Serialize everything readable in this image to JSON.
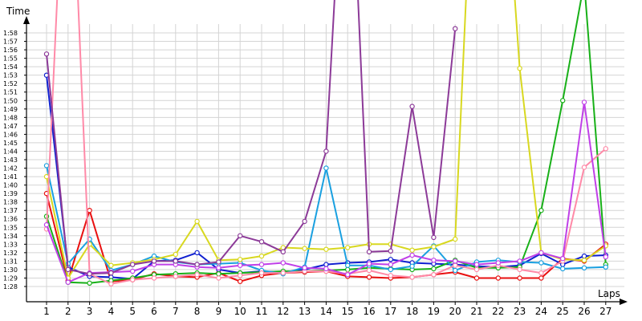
{
  "chart_data": {
    "type": "line",
    "title": "",
    "xlabel": "Laps",
    "ylabel": "Time",
    "x": [
      1,
      2,
      3,
      4,
      5,
      6,
      7,
      8,
      9,
      10,
      11,
      12,
      13,
      14,
      15,
      16,
      17,
      18,
      19,
      20,
      21,
      22,
      23,
      24,
      25,
      26,
      27
    ],
    "x_tick_labels": [
      "1",
      "2",
      "3",
      "4",
      "5",
      "6",
      "7",
      "8",
      "9",
      "10",
      "11",
      "12",
      "13",
      "14",
      "15",
      "16",
      "17",
      "18",
      "19",
      "20",
      "21",
      "22",
      "23",
      "24",
      "25",
      "26",
      "27"
    ],
    "y_unit": "seconds",
    "ylim": [
      87,
      119
    ],
    "y_tick_values": [
      88,
      89,
      90,
      91,
      92,
      93,
      94,
      95,
      96,
      97,
      98,
      99,
      100,
      101,
      102,
      103,
      104,
      105,
      106,
      107,
      108,
      109,
      110,
      111,
      112,
      113,
      114,
      115,
      116,
      117,
      118
    ],
    "y_tick_labels": [
      "1:28",
      "1:29",
      "1:30",
      "1:31",
      "1:32",
      "1:33",
      "1:34",
      "1:35",
      "1:36",
      "1:37",
      "1:38",
      "1:39",
      "1:40",
      "1:41",
      "1:42",
      "1:43",
      "1:44",
      "1:45",
      "1:46",
      "1:47",
      "1:48",
      "1:49",
      "1:50",
      "1:51",
      "1:52",
      "1:53",
      "1:54",
      "1:55",
      "1:56",
      "1:57",
      "1:58"
    ],
    "grid": true,
    "legend": "none",
    "series": [
      {
        "color": "#e81010",
        "values": [
          99.0,
          88.7,
          97.0,
          88.6,
          88.8,
          89.5,
          89.2,
          89.1,
          89.6,
          88.6,
          89.3,
          89.6,
          89.7,
          89.8,
          89.2,
          89.1,
          89.0,
          89.1,
          89.4,
          89.7,
          89.0,
          89.0,
          89.0,
          89.0,
          91.3,
          91.0,
          93.0
        ]
      },
      {
        "color": "#1020d0",
        "values": [
          113.0,
          90.3,
          89.2,
          89.1,
          88.9,
          91.0,
          91.1,
          92.0,
          90.0,
          89.6,
          89.8,
          89.7,
          90.0,
          90.6,
          90.8,
          90.9,
          91.2,
          90.8,
          90.7,
          90.6,
          90.4,
          90.3,
          90.5,
          91.9,
          90.6,
          91.6,
          91.7
        ]
      },
      {
        "color": "#18b018",
        "values": [
          96.3,
          88.5,
          88.4,
          88.7,
          89.0,
          89.4,
          89.5,
          89.6,
          89.5,
          89.6,
          89.7,
          89.8,
          89.8,
          89.9,
          90.0,
          90.2,
          90.1,
          90.0,
          90.1,
          91.1,
          90.2,
          90.2,
          90.3,
          97.0,
          110.0,
          124.0,
          90.6
        ]
      },
      {
        "color": "#1aa0e0",
        "values": [
          102.3,
          90.7,
          93.6,
          89.9,
          90.6,
          91.6,
          90.9,
          90.6,
          90.7,
          90.8,
          89.9,
          89.5,
          90.3,
          102.0,
          90.5,
          90.5,
          90.0,
          90.4,
          92.8,
          89.9,
          90.9,
          91.1,
          90.9,
          90.8,
          90.1,
          90.2,
          90.3
        ]
      },
      {
        "color": "#d8d820",
        "values": [
          101.0,
          89.0,
          93.0,
          90.5,
          90.8,
          91.2,
          91.8,
          95.7,
          91.1,
          91.2,
          91.6,
          92.6,
          92.5,
          92.4,
          92.6,
          93.0,
          93.0,
          92.3,
          92.7,
          93.6,
          150.0,
          150.0,
          113.8,
          92.0,
          91.2,
          91.1,
          92.8
        ]
      },
      {
        "color": "#ff8aa8",
        "values": [
          94.8,
          150.0,
          89.5,
          88.3,
          88.8,
          89.0,
          89.2,
          89.4,
          89.0,
          89.3,
          89.6,
          89.6,
          89.8,
          89.8,
          89.5,
          89.9,
          89.3,
          89.1,
          89.4,
          90.5,
          90.0,
          90.5,
          90.0,
          89.6,
          91.0,
          102.1,
          104.3
        ]
      },
      {
        "color": "#c040e8",
        "values": [
          95.3,
          88.5,
          89.6,
          89.7,
          89.8,
          90.6,
          90.6,
          90.3,
          90.2,
          90.5,
          90.6,
          90.8,
          90.2,
          90.1,
          89.4,
          90.7,
          90.6,
          91.7,
          91.1,
          91.0,
          90.6,
          90.8,
          91.0,
          92.0,
          91.3,
          109.8,
          91.5
        ]
      },
      {
        "color": "#8c3a98",
        "values": [
          115.5,
          90.0,
          89.5,
          89.6,
          90.6,
          91.0,
          91.0,
          90.6,
          90.9,
          94.0,
          93.3,
          92.1,
          95.7,
          104.0,
          150.0,
          92.1,
          92.2,
          109.3,
          93.8,
          118.5,
          null,
          null,
          null,
          null,
          null,
          null,
          null
        ]
      }
    ]
  }
}
